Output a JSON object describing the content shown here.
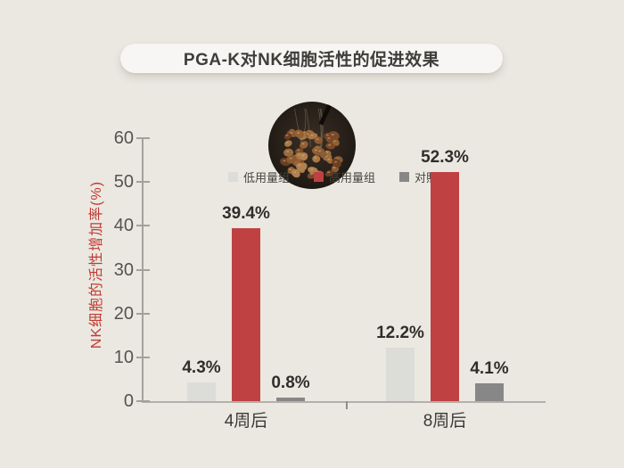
{
  "page": {
    "background": "#eae8e1"
  },
  "title": {
    "text": "PGA-K对NK细胞活性的促进效果"
  },
  "image": {
    "name": "natto-food-photo"
  },
  "colors": {
    "background": "#eae8e1",
    "pill": "#f7f6f4",
    "axis": "#a3a19b",
    "y_axis_title": "#c23a31",
    "low_dose": "#dcdcd9",
    "high_dose": "#bf4142",
    "control": "#878787"
  },
  "chart_data": {
    "type": "bar",
    "title": "PGA-K对NK细胞活性的促进效果",
    "categories": [
      "4周后",
      "8周后"
    ],
    "series": [
      {
        "name": "低用量组",
        "color": "#dcdcd9",
        "values": [
          4.3,
          12.2
        ],
        "labels": [
          "4.3%",
          "12.2%"
        ]
      },
      {
        "name": "高用量组",
        "color": "#bf4142",
        "values": [
          39.4,
          52.3
        ],
        "labels": [
          "39.4%",
          "52.3%"
        ]
      },
      {
        "name": "对照组",
        "color": "#878787",
        "values": [
          0.8,
          4.1
        ],
        "labels": [
          "0.8%",
          "4.1%"
        ]
      }
    ],
    "xlabel": "",
    "ylabel": "NK细胞的活性增加率(%)",
    "ylim": [
      0,
      60
    ],
    "yticks": [
      0,
      10,
      20,
      30,
      40,
      50,
      60
    ],
    "legend_position": "top",
    "grid": false
  }
}
